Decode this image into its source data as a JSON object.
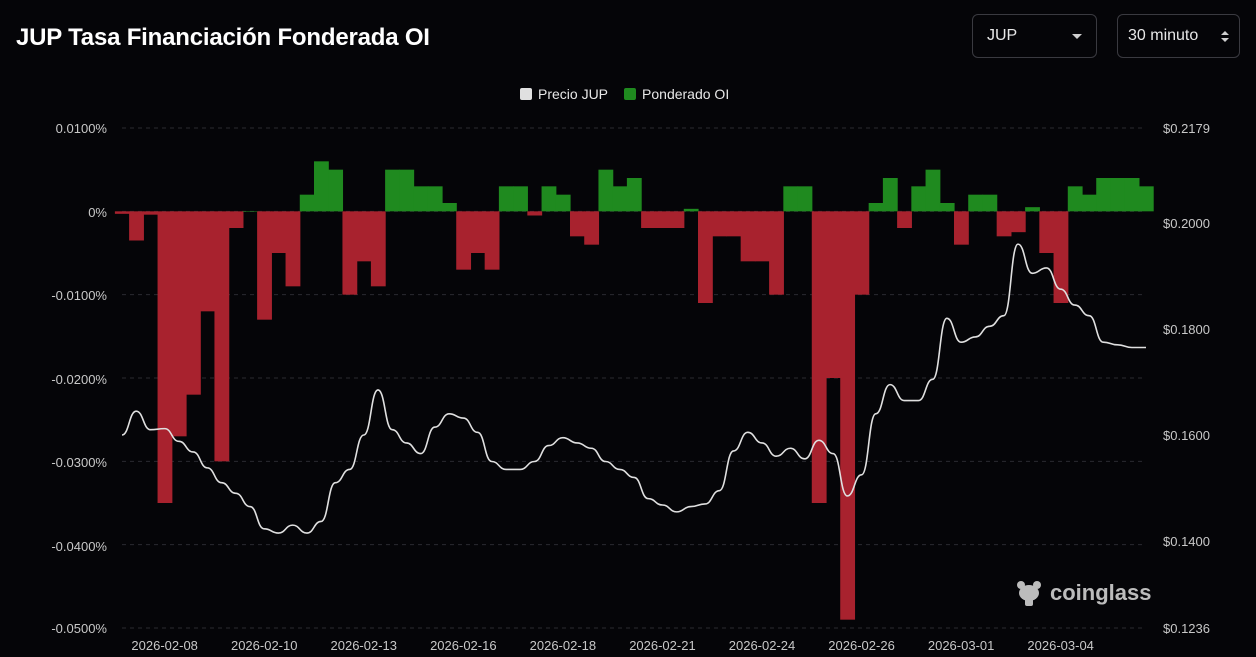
{
  "header": {
    "title": "JUP Tasa Financiación Fonderada OI",
    "coin_select": "JUP",
    "interval_select": "30 minuto"
  },
  "watermark": "coinglass",
  "chart_data": {
    "type": "area",
    "legend": [
      {
        "name": "Precio JUP",
        "color": "#e0e0e0"
      },
      {
        "name": "Ponderado OI",
        "color": "#1f8a1f"
      }
    ],
    "colors": {
      "positive": "#1f8a1f",
      "negative": "#a8222e",
      "price_line": "#e0e0e0"
    },
    "yleft": {
      "ticks": [
        "0.0100%",
        "0%",
        "-0.0100%",
        "-0.0200%",
        "-0.0300%",
        "-0.0400%",
        "-0.0500%"
      ],
      "ylim": [
        -0.05,
        0.01
      ]
    },
    "yright": {
      "ticks": [
        "$0.2179",
        "$0.2000",
        "$0.1800",
        "$0.1600",
        "$0.1400",
        "$0.1236"
      ],
      "ylim": [
        0.1236,
        0.2179
      ]
    },
    "x_ticks": [
      "2026-02-08",
      "2026-02-10",
      "2026-02-13",
      "2026-02-16",
      "2026-02-18",
      "2026-02-21",
      "2026-02-24",
      "2026-02-26",
      "2026-03-01",
      "2026-03-04"
    ],
    "x_tick_index": [
      3,
      10,
      17,
      24,
      31,
      38,
      45,
      52,
      59,
      66
    ],
    "grid": true,
    "x_count": 73,
    "series": [
      {
        "name": "Ponderado OI",
        "axis": "left",
        "values": [
          -0.0003,
          -0.0035,
          -0.0004,
          -0.035,
          -0.027,
          -0.022,
          -0.012,
          -0.03,
          -0.002,
          0.0,
          -0.013,
          -0.005,
          -0.009,
          0.002,
          0.006,
          0.005,
          -0.01,
          -0.006,
          -0.009,
          0.005,
          0.005,
          0.003,
          0.003,
          0.001,
          -0.007,
          -0.005,
          -0.007,
          0.003,
          0.003,
          -0.0005,
          0.003,
          0.002,
          -0.003,
          -0.004,
          0.005,
          0.003,
          0.004,
          -0.002,
          -0.002,
          -0.002,
          0.0003,
          -0.011,
          -0.003,
          -0.003,
          -0.006,
          -0.006,
          -0.01,
          0.003,
          0.003,
          -0.035,
          -0.02,
          -0.049,
          -0.01,
          0.001,
          0.004,
          -0.002,
          0.003,
          0.005,
          0.001,
          -0.004,
          0.002,
          0.002,
          -0.003,
          -0.0025,
          0.0005,
          -0.005,
          -0.011,
          0.003,
          0.002,
          0.004,
          0.004,
          0.004,
          0.003
        ]
      },
      {
        "name": "Precio JUP",
        "axis": "right",
        "values": [
          0.16,
          0.1645,
          0.161,
          0.1612,
          0.1588,
          0.1568,
          0.1538,
          0.151,
          0.149,
          0.1465,
          0.1423,
          0.1415,
          0.143,
          0.1415,
          0.1437,
          0.151,
          0.1535,
          0.16,
          0.1685,
          0.161,
          0.1585,
          0.1565,
          0.1615,
          0.164,
          0.1632,
          0.1605,
          0.155,
          0.1535,
          0.1535,
          0.155,
          0.158,
          0.1595,
          0.1585,
          0.1575,
          0.155,
          0.1535,
          0.152,
          0.148,
          0.1468,
          0.1455,
          0.1465,
          0.147,
          0.1495,
          0.157,
          0.1605,
          0.1585,
          0.156,
          0.1575,
          0.1555,
          0.159,
          0.1565,
          0.1485,
          0.1525,
          0.164,
          0.1695,
          0.1665,
          0.1665,
          0.1705,
          0.182,
          0.1775,
          0.1785,
          0.1805,
          0.1825,
          0.196,
          0.1905,
          0.1915,
          0.1875,
          0.1845,
          0.1825,
          0.1775,
          0.177,
          0.1765,
          0.1765
        ]
      }
    ]
  }
}
